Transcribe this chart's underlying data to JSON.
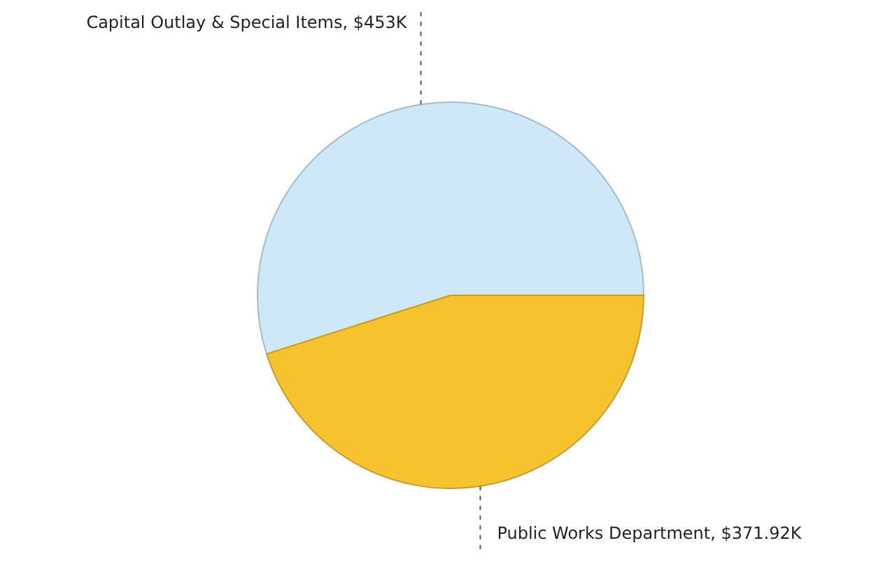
{
  "chart_data": {
    "type": "pie",
    "categories": [
      "Capital Outlay & Special Items",
      "Public Works Department"
    ],
    "values": [
      453,
      371.92
    ],
    "value_labels": [
      "$453K",
      "$371.92K"
    ],
    "colors": [
      "#cfe8f7",
      "#f6c22e"
    ]
  }
}
